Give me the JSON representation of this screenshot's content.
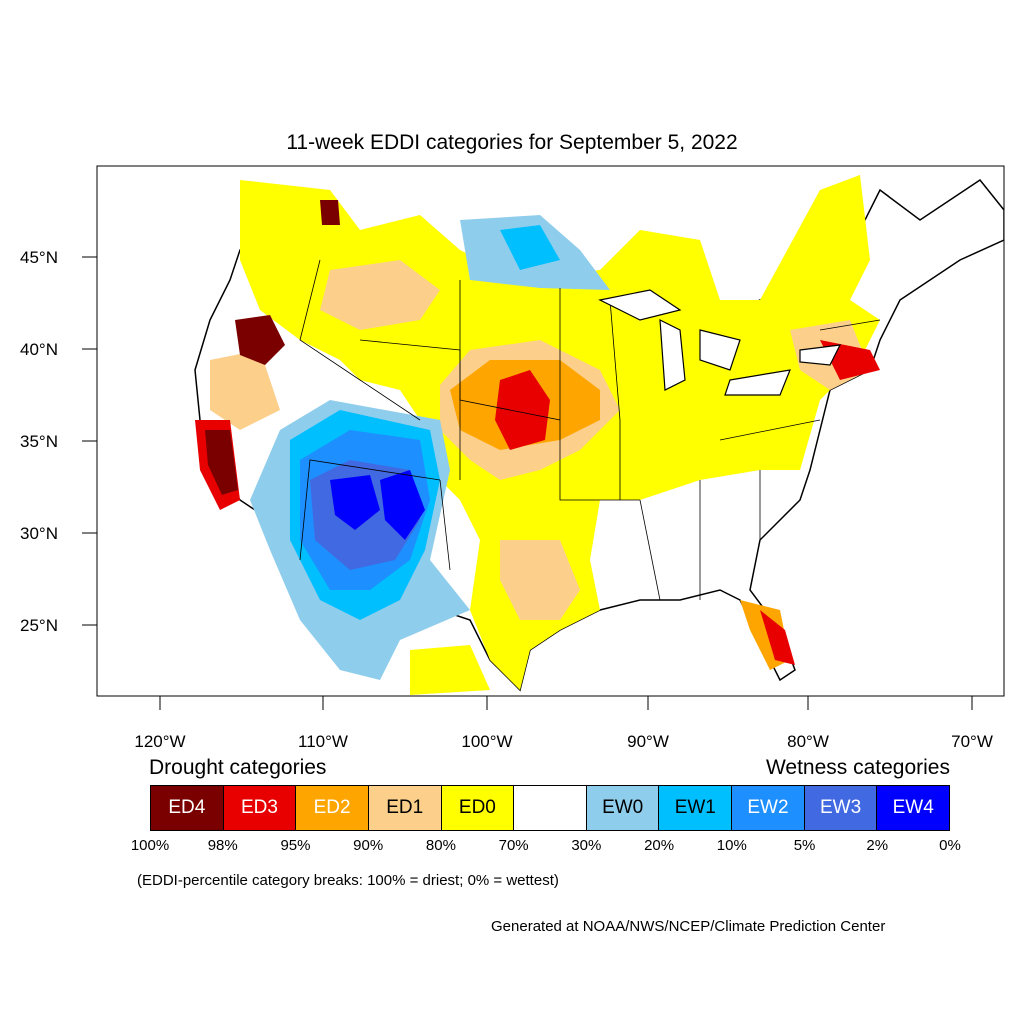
{
  "title": "11-week EDDI categories for September 5, 2022",
  "map": {
    "lat_labels": [
      "45°N",
      "40°N",
      "35°N",
      "30°N",
      "25°N"
    ],
    "lon_labels": [
      "120°W",
      "110°W",
      "100°W",
      "90°W",
      "80°W",
      "70°W"
    ]
  },
  "legend": {
    "drought_heading": "Drought categories",
    "wetness_heading": "Wetness categories",
    "categories": [
      {
        "label": "ED4",
        "color": "#7a0000",
        "text_color": "#ffffff"
      },
      {
        "label": "ED3",
        "color": "#e80000",
        "text_color": "#ffffff"
      },
      {
        "label": "ED2",
        "color": "#ffa500",
        "text_color": "#ffffff"
      },
      {
        "label": "ED1",
        "color": "#fcd08a",
        "text_color": "#000000"
      },
      {
        "label": "ED0",
        "color": "#ffff00",
        "text_color": "#000000"
      },
      {
        "label": "",
        "color": "#ffffff",
        "text_color": "#000000"
      },
      {
        "label": "EW0",
        "color": "#8fcdec",
        "text_color": "#000000"
      },
      {
        "label": "EW1",
        "color": "#00bfff",
        "text_color": "#000000"
      },
      {
        "label": "EW2",
        "color": "#1e8fff",
        "text_color": "#ffffff"
      },
      {
        "label": "EW3",
        "color": "#4169e1",
        "text_color": "#ffffff"
      },
      {
        "label": "EW4",
        "color": "#0000ff",
        "text_color": "#ffffff"
      }
    ],
    "breaks": [
      "100%",
      "98%",
      "95%",
      "90%",
      "80%",
      "70%",
      "30%",
      "20%",
      "10%",
      "5%",
      "2%",
      "0%"
    ]
  },
  "note": "(EDDI-percentile category breaks: 100% = driest; 0% = wettest)",
  "credit": "Generated at NOAA/NWS/NCEP/Climate Prediction Center"
}
